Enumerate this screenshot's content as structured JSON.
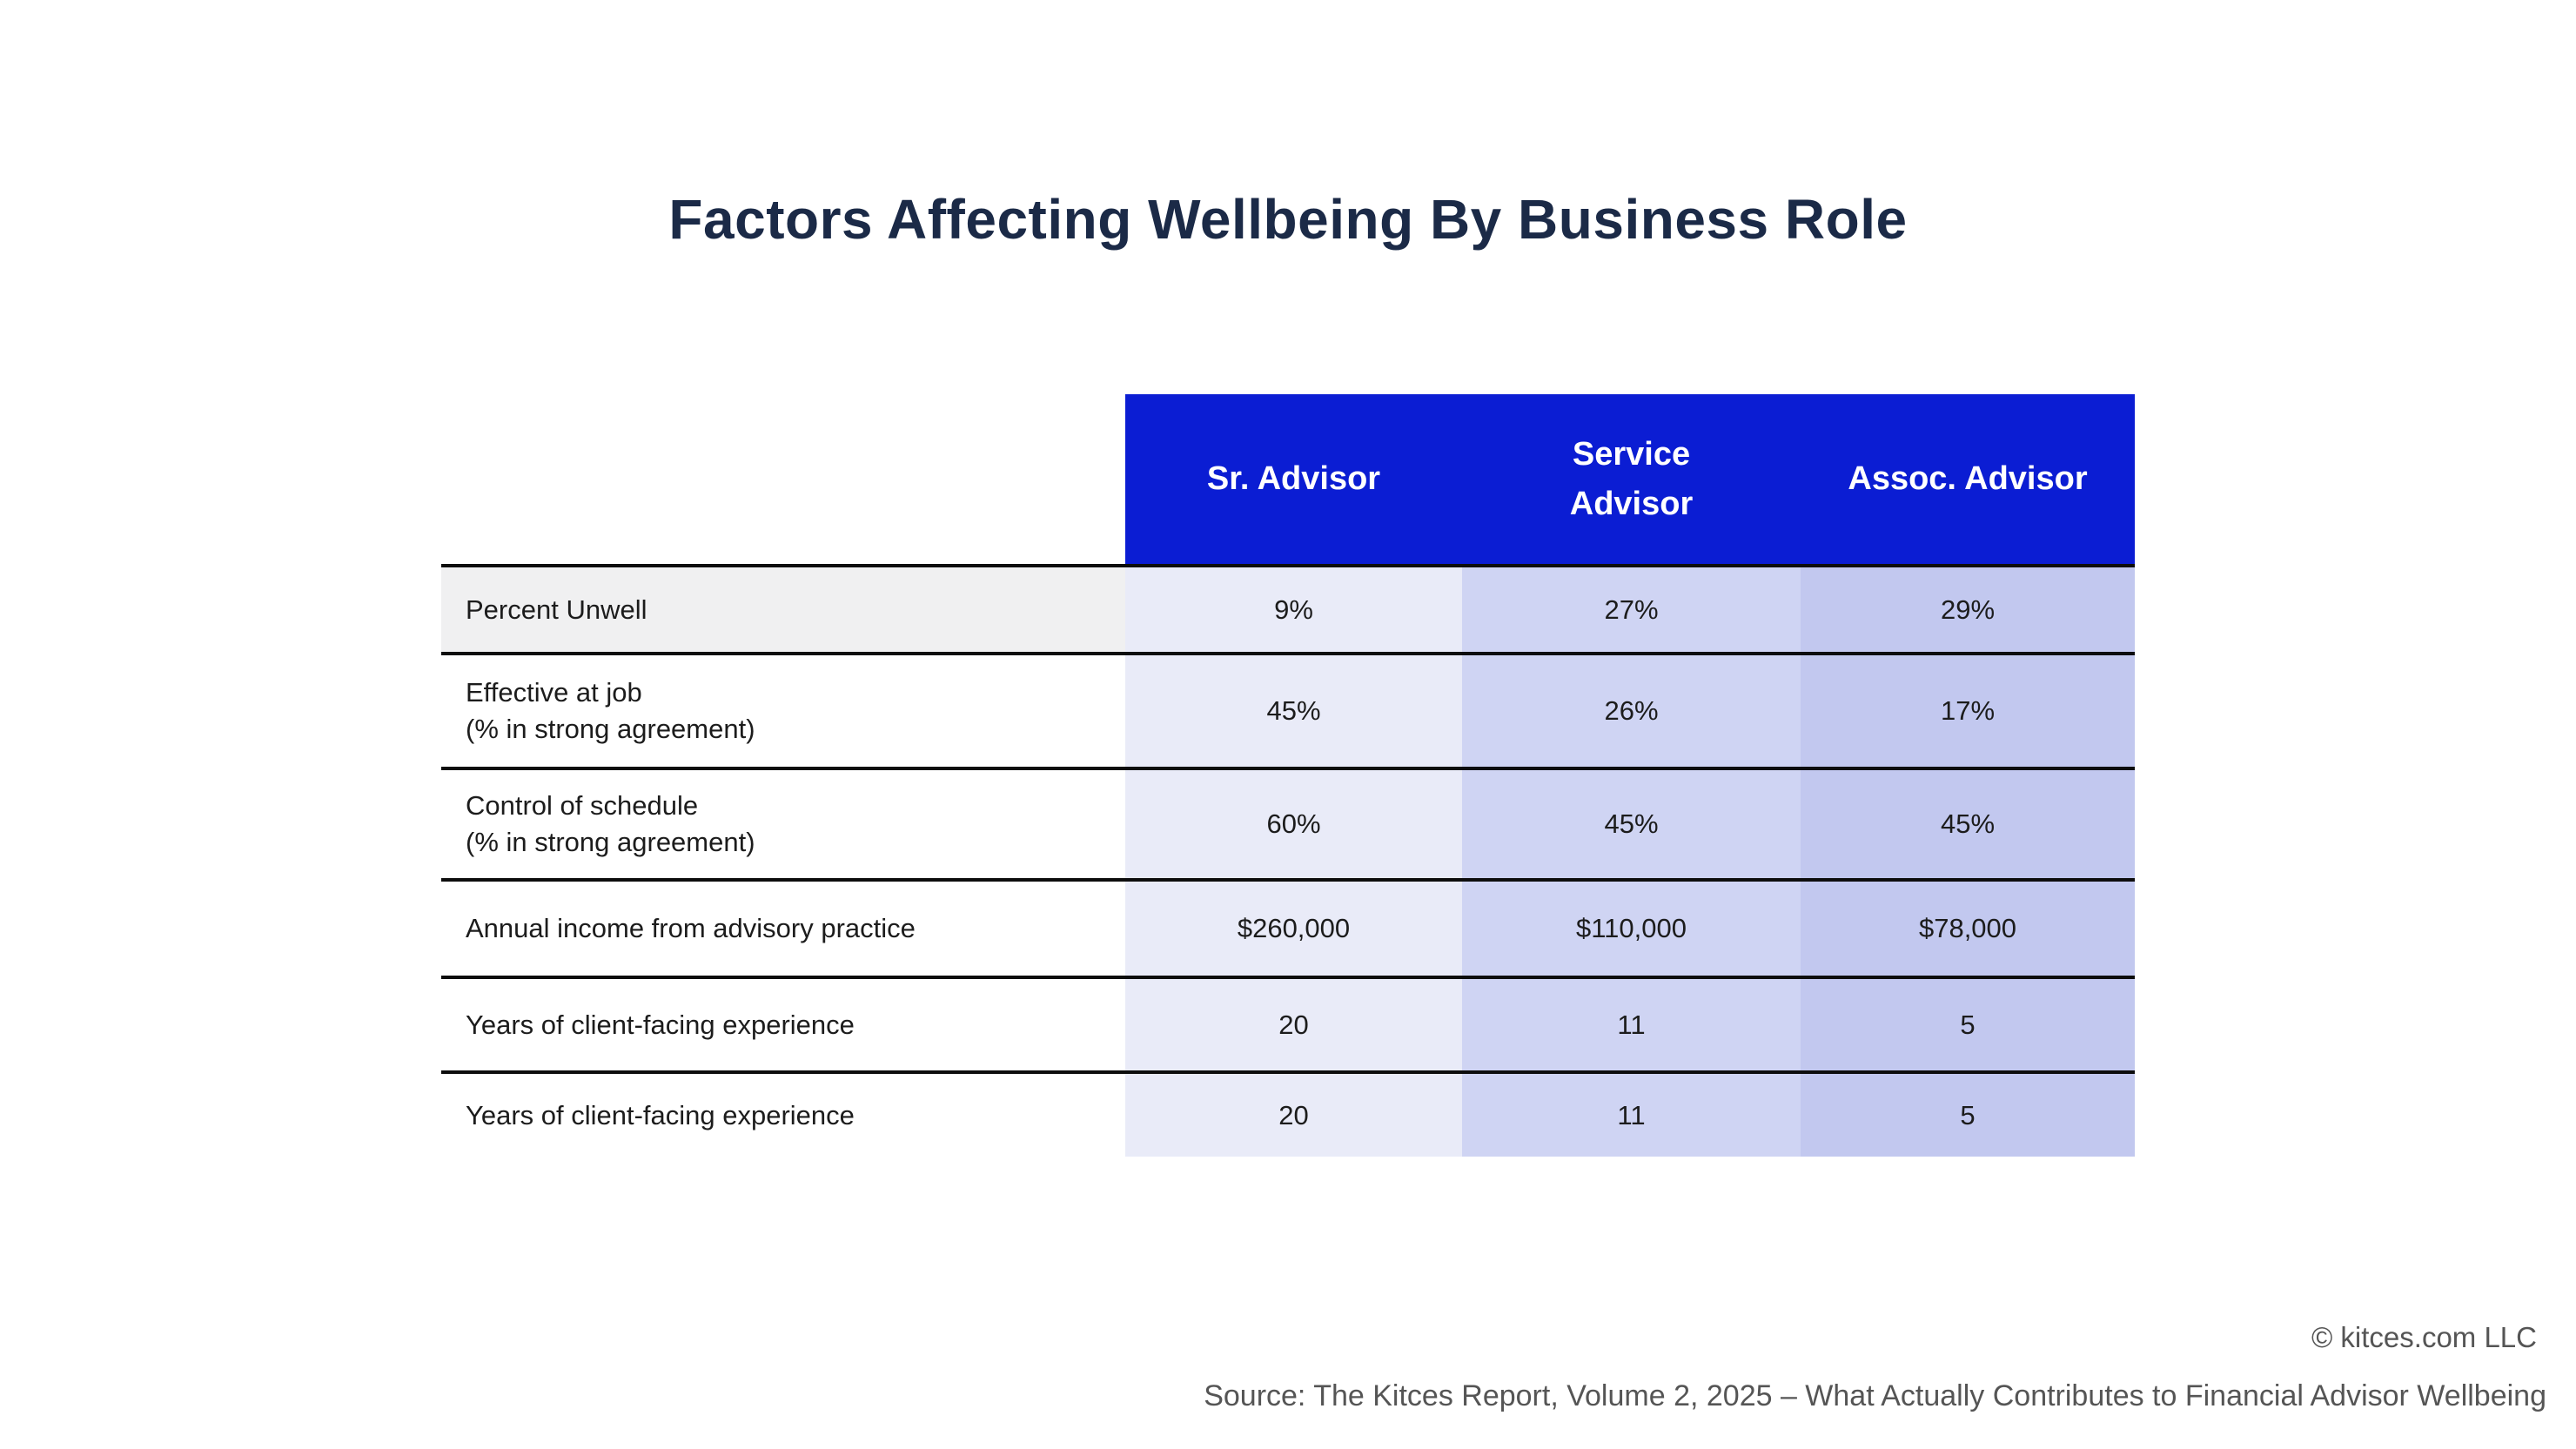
{
  "title": "Factors Affecting Wellbeing By Business Role",
  "table": {
    "headers": [
      "Sr. Advisor",
      "Service\nAdvisor",
      "Assoc. Advisor"
    ],
    "rows": [
      {
        "label": "Percent Unwell",
        "values": [
          "9%",
          "27%",
          "29%"
        ]
      },
      {
        "label": "Effective at job\n(% in strong agreement)",
        "values": [
          "45%",
          "26%",
          "17%"
        ]
      },
      {
        "label": "Control of schedule\n(% in strong agreement)",
        "values": [
          "60%",
          "45%",
          "45%"
        ]
      },
      {
        "label": "Annual income from advisory practice",
        "values": [
          "$260,000",
          "$110,000",
          "$78,000"
        ]
      },
      {
        "label": "Years of client-facing experience",
        "values": [
          "20",
          "11",
          "5"
        ]
      },
      {
        "label": "Years of client-facing experience",
        "values": [
          "20",
          "11",
          "5"
        ]
      }
    ]
  },
  "footer": {
    "copyright": "© kitces.com LLC",
    "source": "Source: The Kitces Report, Volume 2, 2025 – What Actually Contributes to Financial Advisor Wellbeing"
  },
  "colors": {
    "header_blue": "#0b1dd3",
    "col_sr_advisor": "#e9ebf8",
    "col_service_advisor": "#cfd4f3",
    "col_assoc_advisor": "#c2c8ef",
    "row_highlight_gray": "#f0f0f1",
    "title_navy": "#1b2a47",
    "divider_black": "#0d0d0d",
    "footer_gray": "#555555"
  },
  "chart_data": {
    "type": "table",
    "title": "Factors Affecting Wellbeing By Business Role",
    "columns": [
      "",
      "Sr. Advisor",
      "Service Advisor",
      "Assoc. Advisor"
    ],
    "rows": [
      [
        "Percent Unwell",
        "9%",
        "27%",
        "29%"
      ],
      [
        "Effective at job (% in strong agreement)",
        "45%",
        "26%",
        "17%"
      ],
      [
        "Control of schedule (% in strong agreement)",
        "60%",
        "45%",
        "45%"
      ],
      [
        "Annual income from advisory practice",
        "$260,000",
        "$110,000",
        "$78,000"
      ],
      [
        "Years of client-facing experience",
        "20",
        "11",
        "5"
      ],
      [
        "Years of client-facing experience",
        "20",
        "11",
        "5"
      ]
    ],
    "legend_position": "none",
    "source": "Source: The Kitces Report, Volume 2, 2025 – What Actually Contributes to Financial Advisor Wellbeing",
    "copyright": "© kitces.com LLC"
  }
}
